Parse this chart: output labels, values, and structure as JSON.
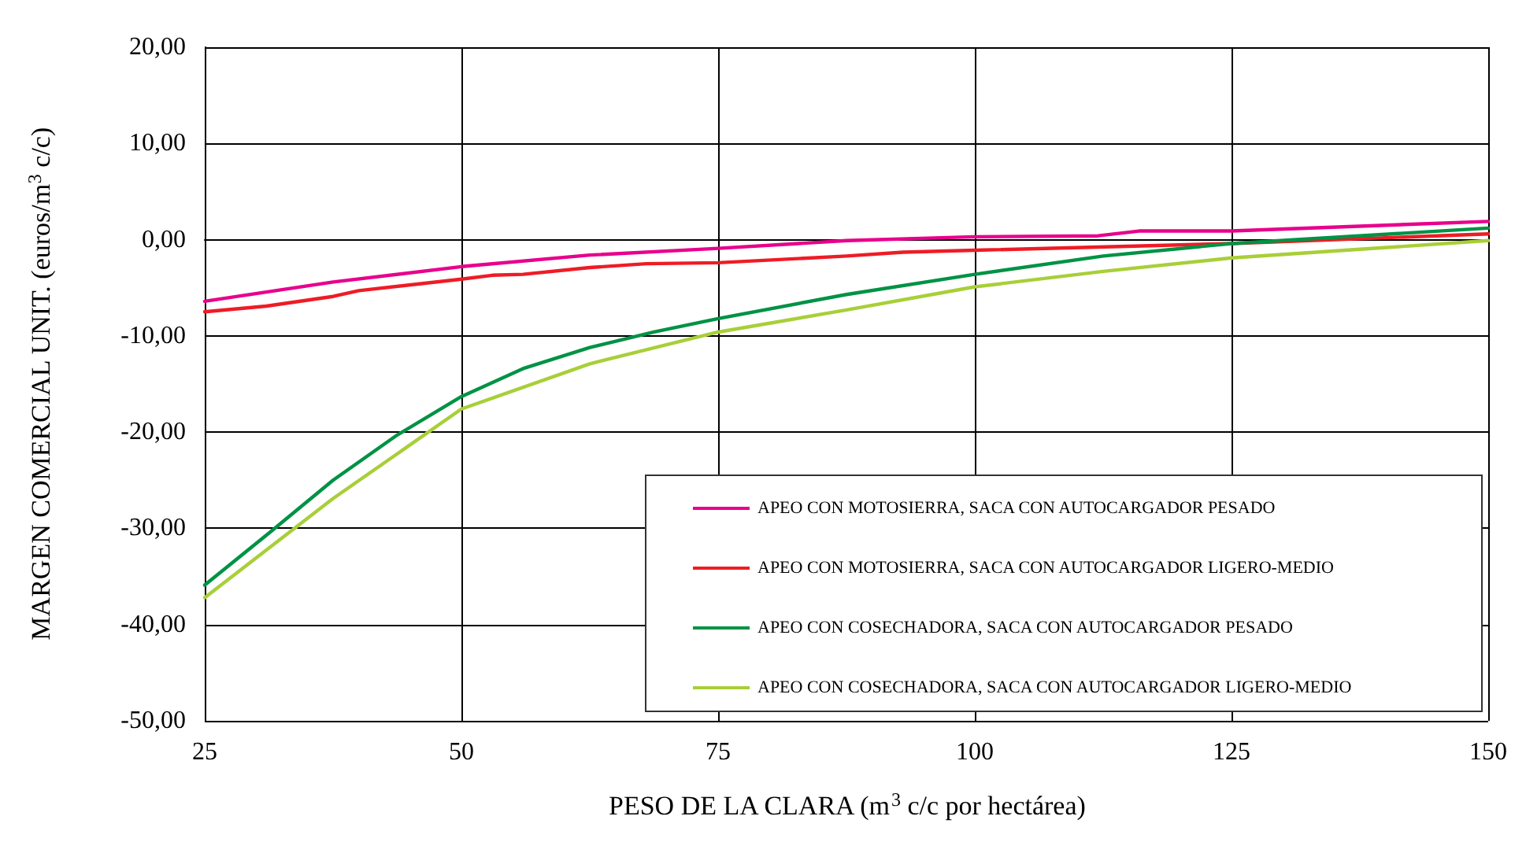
{
  "chart_data": {
    "type": "line",
    "xlabel": "PESO DE LA CLARA (m$^{3}$ c/c por hectárea)",
    "ylabel": "MARGEN COMERCIAL UNIT. (euros/m$^{3}$ c/c)",
    "xlim": [
      25,
      150
    ],
    "xticks": [
      25,
      50,
      75,
      100,
      125,
      150
    ],
    "ylim": [
      -50,
      20
    ],
    "yticks": [
      {
        "value": -50,
        "label": "-50,00"
      },
      {
        "value": -40,
        "label": "-40,00"
      },
      {
        "value": -30,
        "label": "-30,00"
      },
      {
        "value": -20,
        "label": "-20,00"
      },
      {
        "value": -10,
        "label": "-10,00"
      },
      {
        "value": 0,
        "label": "0,00"
      },
      {
        "value": 10,
        "label": "10,00"
      },
      {
        "value": 20,
        "label": "20,00"
      }
    ],
    "grid": true,
    "legend": "bottom right",
    "marker": "none",
    "line_style": "solid",
    "series": [
      {
        "name": "APEO CON MOTOSIERRA, SACA CON AUTOCARGADOR PESADO",
        "color": "#e8008c",
        "x": [
          25,
          37.5,
          50,
          62.5,
          75,
          87.5,
          100,
          112,
          116,
          125,
          150
        ],
        "values": [
          -6.4,
          -4.4,
          -2.8,
          -1.6,
          -0.9,
          -0.1,
          0.3,
          0.4,
          0.9,
          0.9,
          1.9
        ]
      },
      {
        "name": "APEO CON MOTOSIERRA, SACA CON AUTOCARGADOR LIGERO-MEDIO",
        "color": "#ee1c25",
        "x": [
          25,
          31,
          37.5,
          40,
          50,
          53,
          56,
          62.5,
          68,
          75,
          87.5,
          93,
          100,
          125,
          150
        ],
        "values": [
          -7.5,
          -6.9,
          -5.9,
          -5.3,
          -4.1,
          -3.7,
          -3.6,
          -2.9,
          -2.5,
          -2.4,
          -1.7,
          -1.3,
          -1.1,
          -0.4,
          0.6
        ]
      },
      {
        "name": "APEO CON COSECHADORA, SACA CON AUTOCARGADOR PESADO",
        "color": "#009245",
        "x": [
          25,
          31.25,
          37.5,
          43.75,
          50,
          56,
          62.5,
          68.75,
          75,
          87.5,
          100,
          112.5,
          125,
          150
        ],
        "values": [
          -35.9,
          -30.5,
          -25,
          -20.3,
          -16.3,
          -13.4,
          -11.2,
          -9.6,
          -8.2,
          -5.7,
          -3.6,
          -1.7,
          -0.4,
          1.2
        ]
      },
      {
        "name": "APEO CON COSECHADORA, SACA CON AUTOCARGADOR LIGERO-MEDIO",
        "color": "#a8cf38",
        "x": [
          25,
          37.5,
          50,
          62.5,
          75,
          87.5,
          100,
          112.5,
          125,
          137.5,
          150
        ],
        "values": [
          -37.2,
          -26.9,
          -17.6,
          -12.9,
          -9.6,
          -7.3,
          -4.9,
          -3.3,
          -1.9,
          -1.0,
          -0.1
        ]
      }
    ]
  }
}
